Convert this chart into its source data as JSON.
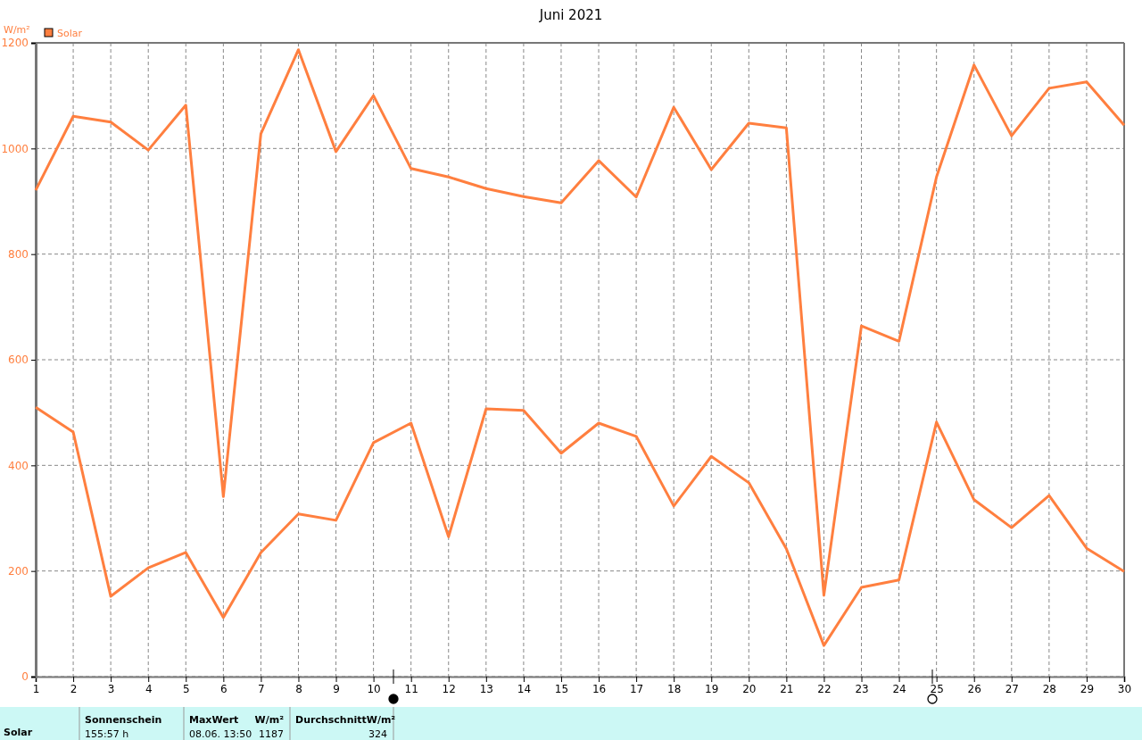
{
  "chart_data": {
    "type": "line",
    "title": "Juni 2021",
    "ylabel": "W/m²",
    "x": [
      1,
      2,
      3,
      4,
      5,
      6,
      7,
      8,
      9,
      10,
      11,
      12,
      13,
      14,
      15,
      16,
      17,
      18,
      19,
      20,
      21,
      22,
      23,
      24,
      25,
      26,
      27,
      28,
      29,
      30
    ],
    "series": [
      {
        "name": "Solar",
        "color": "#ff7f3f",
        "values": [
          921,
          1061,
          1050,
          997,
          1082,
          341,
          1028,
          1187,
          994,
          1100,
          962,
          946,
          924,
          909,
          897,
          977,
          908,
          1078,
          960,
          1048,
          1039,
          154,
          664,
          635,
          946,
          1158,
          1024,
          1114,
          1126,
          1044
        ]
      },
      {
        "color": "#ff7f3f",
        "values": [
          510,
          463,
          152,
          206,
          235,
          112,
          235,
          308,
          296,
          443,
          480,
          265,
          507,
          504,
          423,
          480,
          455,
          323,
          417,
          367,
          242,
          59,
          169,
          183,
          482,
          335,
          282,
          343,
          243,
          199
        ]
      }
    ],
    "xlim": [
      1,
      30
    ],
    "xticks": [
      1,
      2,
      3,
      4,
      5,
      6,
      7,
      8,
      9,
      10,
      11,
      12,
      13,
      14,
      15,
      16,
      17,
      18,
      19,
      20,
      21,
      22,
      23,
      24,
      25,
      26,
      27,
      28,
      29,
      30
    ],
    "ylim": [
      0,
      1200
    ],
    "yticks": [
      0,
      200,
      400,
      600,
      800,
      1000,
      1200
    ],
    "grid": true,
    "legend": "top left",
    "marker": "none",
    "line_style": "solid",
    "annotations": [
      "Solar",
      "Sonnenschein",
      "155:57 h",
      "MaxWert",
      "W/m²",
      "08.06.  13:50",
      "1187",
      "DurchschnittW/m²",
      "324"
    ]
  }
}
